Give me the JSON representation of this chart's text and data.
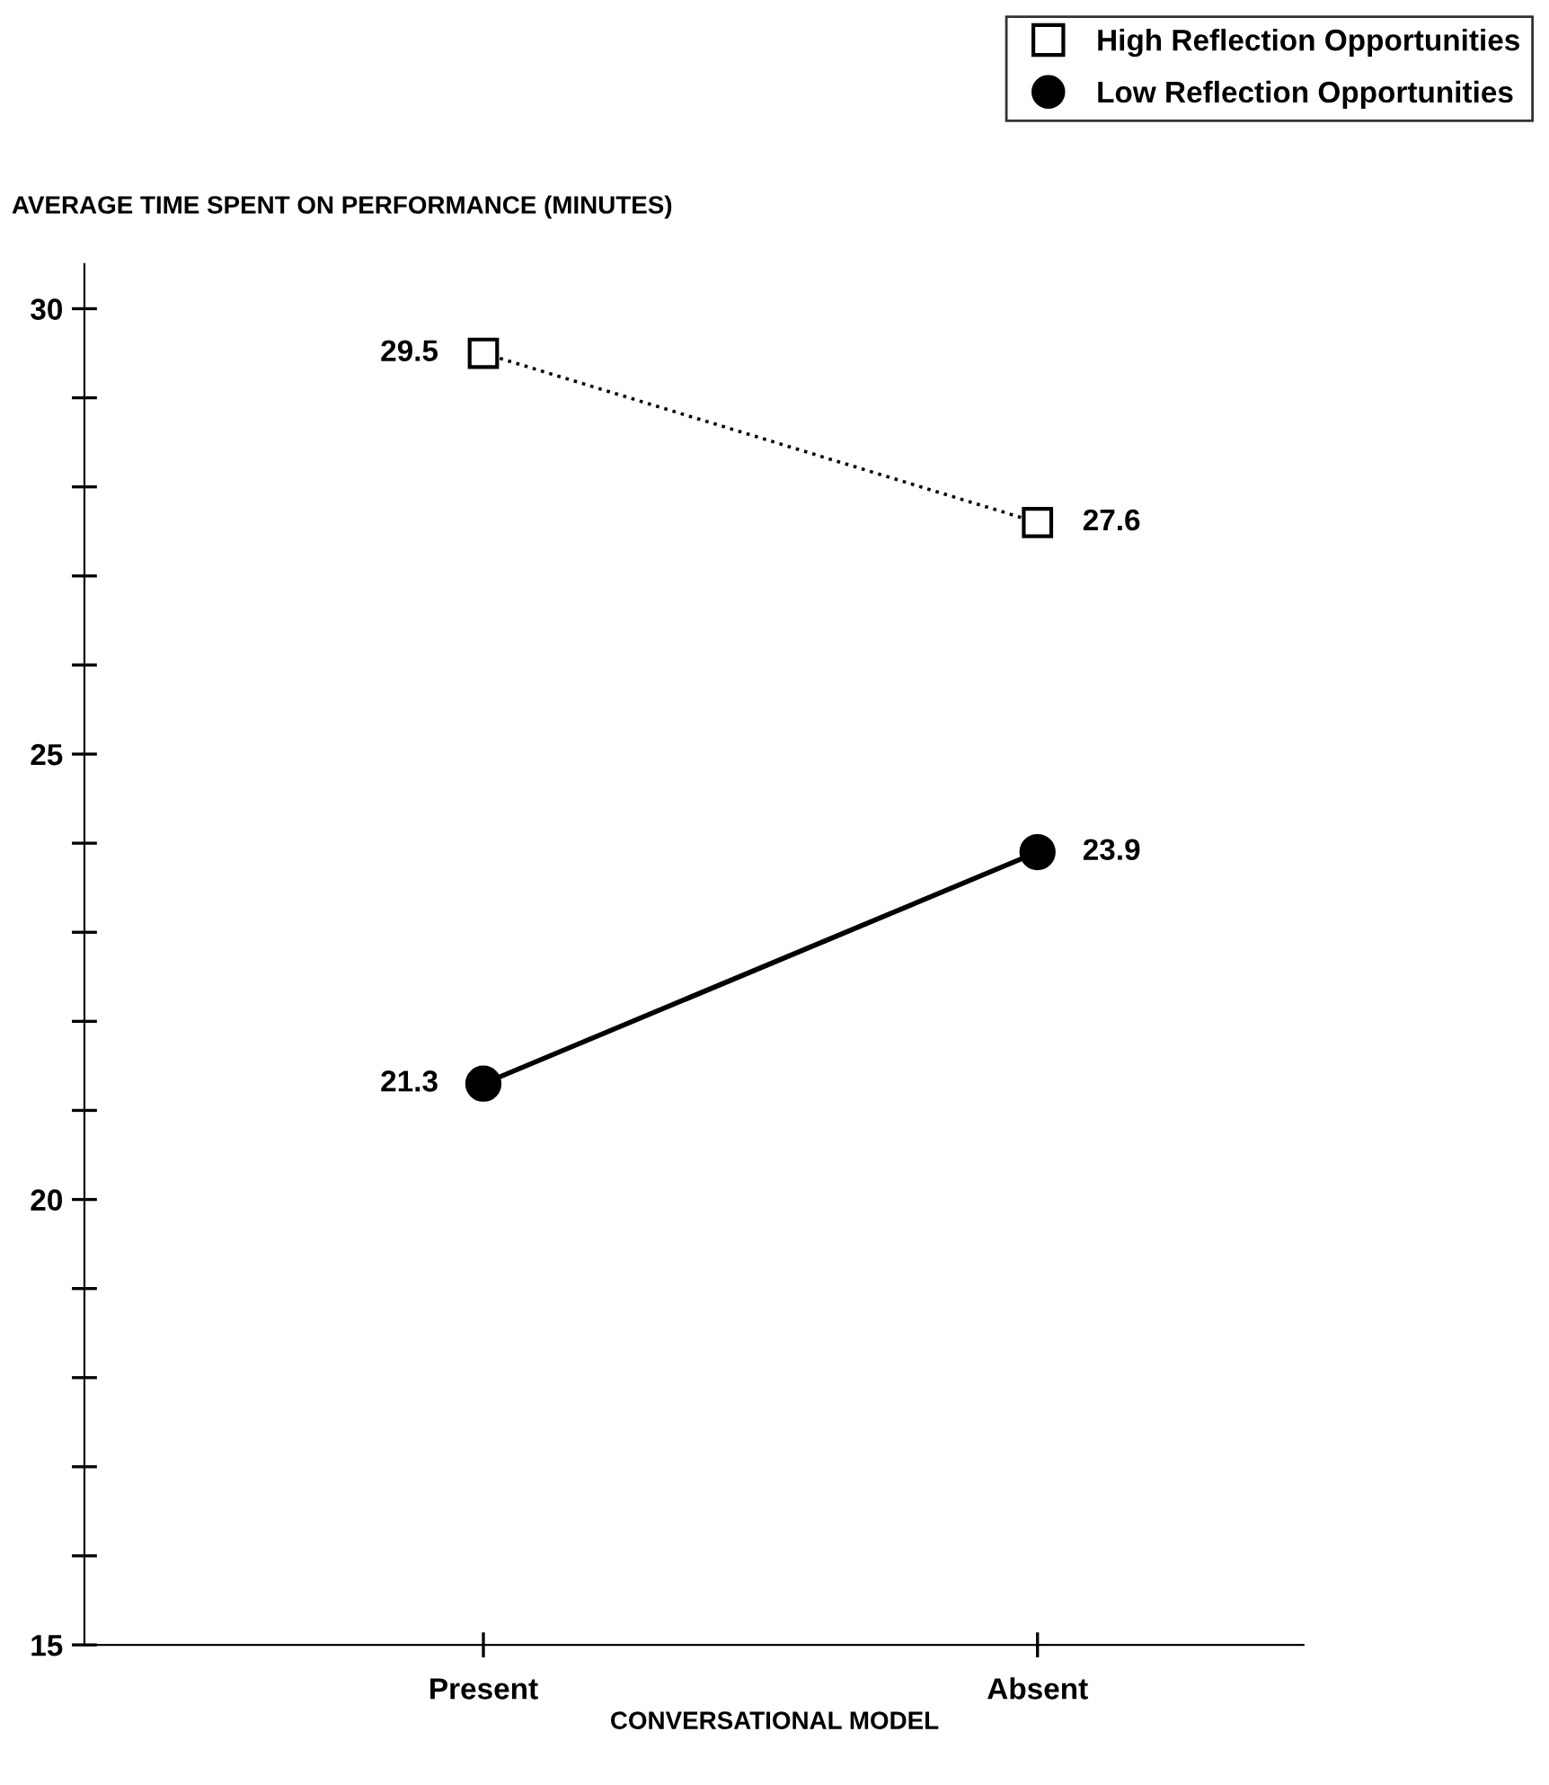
{
  "chart_data": {
    "type": "line",
    "ylabel": "AVERAGE TIME SPENT ON PERFORMANCE (MINUTES)",
    "xlabel": "CONVERSATIONAL MODEL",
    "categories": [
      "Present",
      "Absent"
    ],
    "series": [
      {
        "name": "High Reflection Opportunities",
        "color": "#000000",
        "values": [
          29.5,
          27.6
        ],
        "marker": "square",
        "line_style": "dotted"
      },
      {
        "name": "Low Reflection Opportunities",
        "color": "#000000",
        "values": [
          21.3,
          23.9
        ],
        "marker": "circle",
        "line_style": "solid"
      }
    ],
    "ylim": [
      15,
      30.5
    ],
    "yticks": [
      15,
      {
        "value": 16,
        "label": null
      },
      {
        "value": 17,
        "label": null
      },
      {
        "value": 18,
        "label": null
      },
      {
        "value": 19,
        "label": null
      },
      20,
      {
        "value": 21,
        "label": null
      },
      {
        "value": 22,
        "label": null
      },
      {
        "value": 23,
        "label": null
      },
      {
        "value": 24,
        "label": null
      },
      25,
      {
        "value": 26,
        "label": null
      },
      {
        "value": 27,
        "label": null
      },
      {
        "value": 28,
        "label": null
      },
      {
        "value": 29,
        "label": null
      },
      30
    ],
    "data_labels": true,
    "legend": "top right",
    "grid": false
  }
}
